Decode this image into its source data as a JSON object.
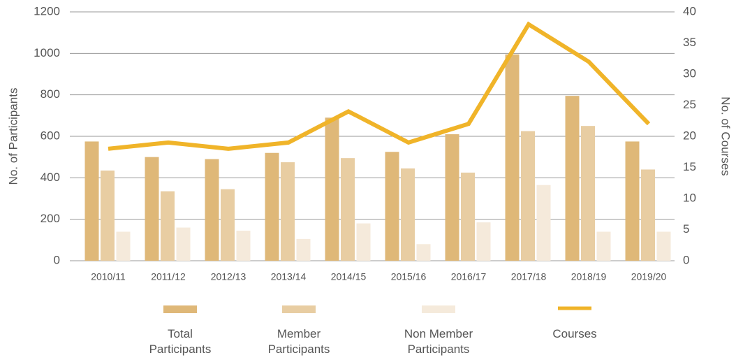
{
  "chart_data": {
    "type": "bar",
    "y_label": "No. of Participants",
    "y2_label": "No. of Courses",
    "categories": [
      "2010/11",
      "2011/12",
      "2012/13",
      "2013/14",
      "2014/15",
      "2015/16",
      "2016/17",
      "2017/18",
      "2018/19",
      "2019/20"
    ],
    "series": [
      {
        "name": "Total Participants",
        "color": "#dfb878",
        "values": [
          575,
          500,
          490,
          520,
          690,
          525,
          610,
          995,
          795,
          575
        ]
      },
      {
        "name": "Member Participants",
        "color": "#e8cda2",
        "values": [
          435,
          335,
          345,
          475,
          495,
          445,
          425,
          625,
          650,
          440
        ]
      },
      {
        "name": "Non Member Participants",
        "color": "#f5eadb",
        "values": [
          140,
          160,
          145,
          105,
          180,
          80,
          185,
          365,
          140,
          140
        ]
      },
      {
        "name": "Courses",
        "color": "#f0b429",
        "type": "line",
        "axis": "y2",
        "values": [
          18,
          19,
          18,
          19,
          24,
          19,
          22,
          38,
          32,
          22
        ]
      }
    ],
    "ylim": [
      0,
      1200
    ],
    "yticks": [
      0,
      200,
      400,
      600,
      800,
      1000,
      1200
    ],
    "y2lim": [
      0,
      40
    ],
    "y2ticks": [
      0,
      5,
      10,
      15,
      20,
      25,
      30,
      35,
      40
    ],
    "grid": true,
    "legend": "bottom"
  }
}
